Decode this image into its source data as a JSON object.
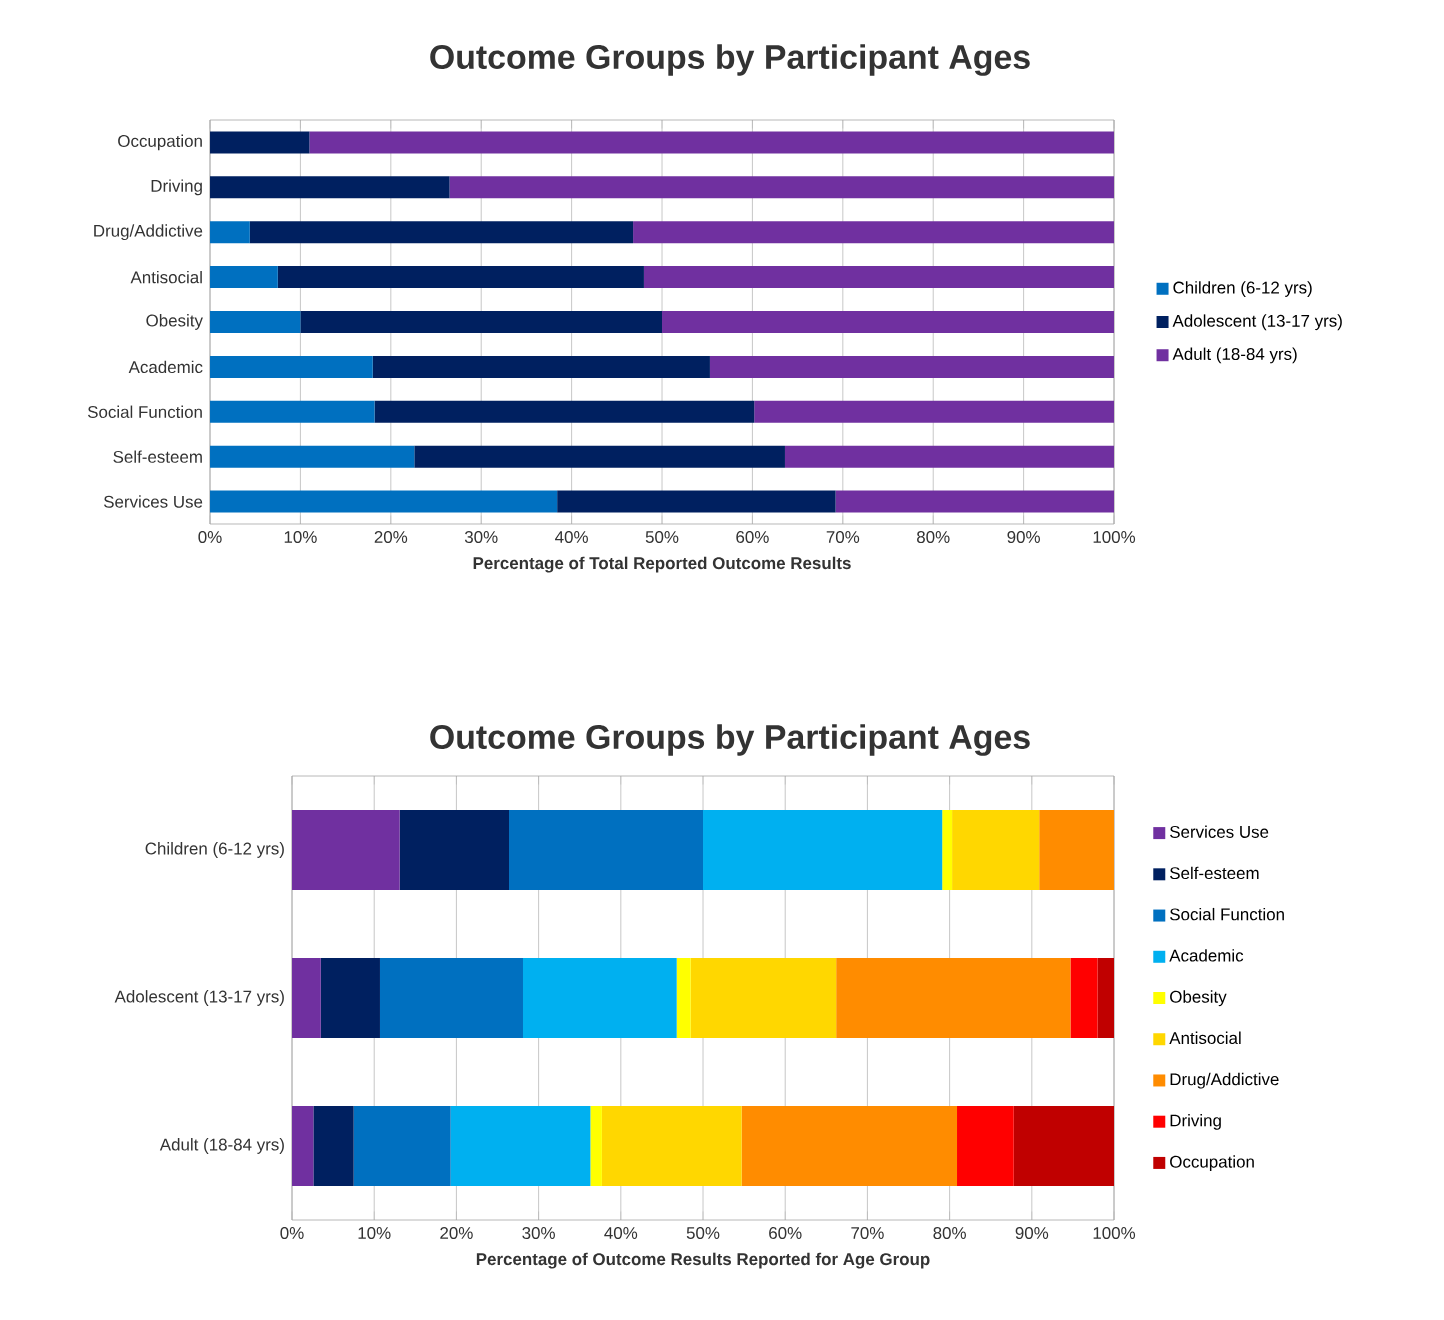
{
  "chart_data": [
    {
      "type": "bar",
      "orientation": "horizontal",
      "stacked": true,
      "title": "Outcome Groups by Participant  Ages",
      "xlabel": "Percentage of Total Reported Outcome Results",
      "categories": [
        "Occupation",
        "Driving",
        "Drug/Addictive",
        "Antisocial",
        "Obesity",
        "Academic",
        "Social Function",
        "Self-esteem",
        "Services Use"
      ],
      "series": [
        {
          "name": "Children (6-12 yrs)",
          "color": "#0070c0",
          "values": [
            0,
            0,
            4.4,
            7.5,
            10,
            18,
            18.2,
            22.6,
            38.4
          ]
        },
        {
          "name": "Adolescent (13-17 yrs)",
          "color": "#002060",
          "values": [
            11,
            26.5,
            42.4,
            40.5,
            40,
            37.3,
            42,
            41,
            30.8
          ]
        },
        {
          "name": "Adult (18-84 yrs)",
          "color": "#7030a0",
          "values": [
            89,
            73.5,
            53.2,
            52,
            50,
            44.7,
            39.8,
            36.4,
            30.8
          ]
        }
      ],
      "xlim": [
        0,
        100
      ],
      "xticks": [
        {
          "value": 0,
          "label": "0%"
        },
        {
          "value": 10,
          "label": "10%"
        },
        {
          "value": 20,
          "label": "20%"
        },
        {
          "value": 30,
          "label": "30%"
        },
        {
          "value": 40,
          "label": "40%"
        },
        {
          "value": 50,
          "label": "50%"
        },
        {
          "value": 60,
          "label": "60%"
        },
        {
          "value": 70,
          "label": "70%"
        },
        {
          "value": 80,
          "label": "80%"
        },
        {
          "value": 90,
          "label": "90%"
        },
        {
          "value": 100,
          "label": "100%"
        }
      ],
      "grid": "x",
      "legend": "right"
    },
    {
      "type": "bar",
      "orientation": "horizontal",
      "stacked": true,
      "title": "Outcome Groups by Participant  Ages",
      "xlabel": "Percentage of Outcome Results Reported for Age Group",
      "categories": [
        "Children (6-12 yrs)",
        "Adolescent (13-17 yrs)",
        "Adult (18-84 yrs)"
      ],
      "series": [
        {
          "name": "Services Use",
          "color": "#7030a0",
          "values": [
            13.1,
            3.5,
            2.6
          ]
        },
        {
          "name": "Self-esteem",
          "color": "#002060",
          "values": [
            13.3,
            7.2,
            4.9
          ]
        },
        {
          "name": "Social Function",
          "color": "#0070c0",
          "values": [
            23.6,
            17.4,
            11.8
          ]
        },
        {
          "name": "Academic",
          "color": "#00b0f0",
          "values": [
            29.1,
            18.7,
            17
          ]
        },
        {
          "name": "Obesity",
          "color": "#ffff00",
          "values": [
            1.2,
            1.7,
            1.4
          ]
        },
        {
          "name": "Antisocial",
          "color": "#ffd700",
          "values": [
            10.6,
            17.7,
            17
          ]
        },
        {
          "name": "Drug/Addictive",
          "color": "#ff8c00",
          "values": [
            9.1,
            28.5,
            26.2
          ]
        },
        {
          "name": "Driving",
          "color": "#ff0000",
          "values": [
            0,
            3.3,
            6.9
          ]
        },
        {
          "name": "Occupation",
          "color": "#c00000",
          "values": [
            0,
            2.0,
            12.2
          ]
        }
      ],
      "xlim": [
        0,
        100
      ],
      "xticks": [
        {
          "value": 0,
          "label": "0%"
        },
        {
          "value": 10,
          "label": "10%"
        },
        {
          "value": 20,
          "label": "20%"
        },
        {
          "value": 30,
          "label": "30%"
        },
        {
          "value": 40,
          "label": "40%"
        },
        {
          "value": 50,
          "label": "50%"
        },
        {
          "value": 60,
          "label": "60%"
        },
        {
          "value": 70,
          "label": "70%"
        },
        {
          "value": 80,
          "label": "80%"
        },
        {
          "value": 90,
          "label": "90%"
        },
        {
          "value": 100,
          "label": "100%"
        }
      ],
      "grid": "x",
      "legend": "right"
    }
  ]
}
